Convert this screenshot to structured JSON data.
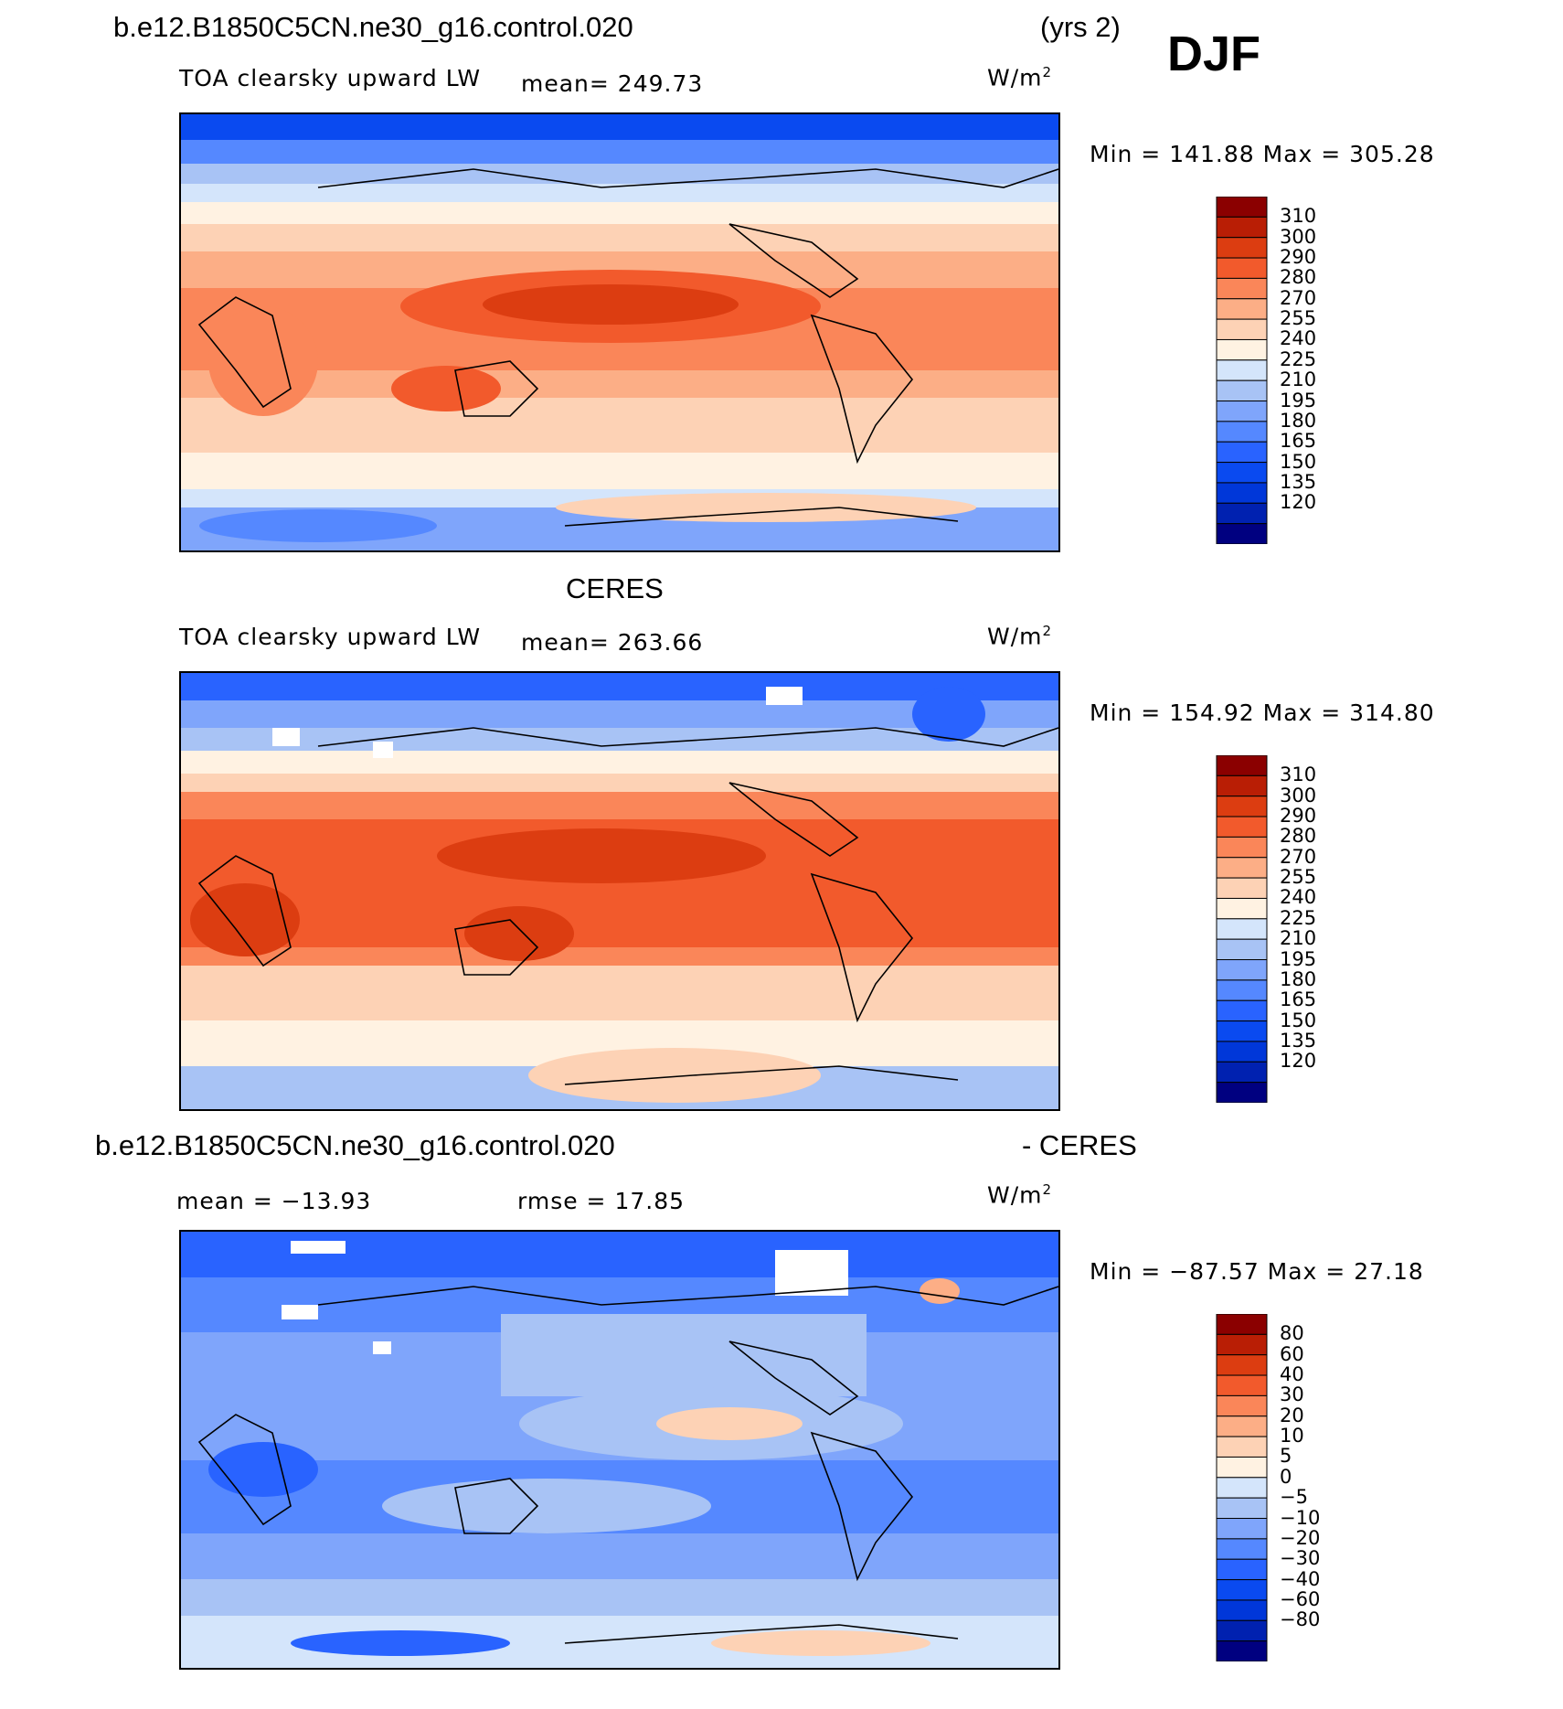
{
  "header": {
    "case_name": "b.e12.B1850C5CN.ne30_g16.control.020",
    "years": "(yrs 2)",
    "season": "DJF"
  },
  "colors": {
    "warm_scale": [
      "#000080",
      "#0021b0",
      "#0037d9",
      "#0a4af0",
      "#2963ff",
      "#5588ff",
      "#7fa5fb",
      "#a8c3f5",
      "#d4e5fb",
      "#fff2e2",
      "#fdd2b5",
      "#fcae86",
      "#fa8659",
      "#f25a2c",
      "#dc3d11",
      "#b91e05",
      "#8b0000"
    ],
    "diff_scale": [
      "#000080",
      "#0021b0",
      "#0037d9",
      "#0a4af0",
      "#2963ff",
      "#5588ff",
      "#7fa5fb",
      "#a8c3f5",
      "#d4e5fb",
      "#fff2e2",
      "#fdd2b5",
      "#fcae86",
      "#fa8659",
      "#f25a2c",
      "#dc3d11",
      "#b91e05",
      "#8b0000"
    ]
  },
  "chart_data": [
    {
      "type": "heatmap",
      "title": "b.e12.B1850C5CN.ne30_g16.control.020",
      "variable": "TOA clearsky upward LW",
      "mean_label": "mean= 249.73",
      "units": "W/m",
      "units_sup": "2",
      "min_max": "Min = 141.88 Max = 305.28",
      "min": 141.88,
      "max": 305.28,
      "mean": 249.73,
      "colorbar_levels": [
        "310",
        "300",
        "290",
        "280",
        "270",
        "255",
        "240",
        "225",
        "210",
        "195",
        "180",
        "165",
        "150",
        "135",
        "120"
      ]
    },
    {
      "type": "heatmap",
      "title": "CERES",
      "variable": "TOA clearsky upward LW",
      "mean_label": "mean= 263.66",
      "units": "W/m",
      "units_sup": "2",
      "min_max": "Min = 154.92 Max = 314.80",
      "min": 154.92,
      "max": 314.8,
      "mean": 263.66,
      "colorbar_levels": [
        "310",
        "300",
        "290",
        "280",
        "270",
        "255",
        "240",
        "225",
        "210",
        "195",
        "180",
        "165",
        "150",
        "135",
        "120"
      ]
    },
    {
      "type": "heatmap",
      "title": "b.e12.B1850C5CN.ne30_g16.control.020",
      "title_suffix": "- CERES",
      "mean_label": "mean = −13.93",
      "rmse_label": "rmse =   17.85",
      "units": "W/m",
      "units_sup": "2",
      "min_max": "Min = −87.57 Max =   27.18",
      "min": -87.57,
      "max": 27.18,
      "mean": -13.93,
      "rmse": 17.85,
      "colorbar_levels": [
        "80",
        "60",
        "40",
        "30",
        "20",
        "10",
        "5",
        "0",
        "−5",
        "−10",
        "−20",
        "−30",
        "−40",
        "−60",
        "−80"
      ]
    }
  ]
}
